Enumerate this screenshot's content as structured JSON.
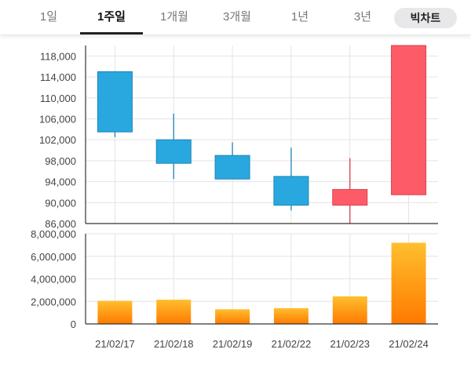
{
  "tabs": [
    {
      "label": "1일",
      "active": false
    },
    {
      "label": "1주일",
      "active": true
    },
    {
      "label": "1개월",
      "active": false
    },
    {
      "label": "3개월",
      "active": false
    },
    {
      "label": "1년",
      "active": false
    },
    {
      "label": "3년",
      "active": false
    }
  ],
  "chart_toggle_label": "빅차트",
  "colors": {
    "down": "#29a8e0",
    "down_stroke": "#1d84b5",
    "up": "#fe5b68",
    "up_stroke": "#d9404c",
    "volume_top": "#ffbf2e",
    "volume_bottom": "#ff7a00"
  },
  "chart_data": [
    {
      "type": "candlestick",
      "categories": [
        "21/02/17",
        "21/02/18",
        "21/02/19",
        "21/02/22",
        "21/02/23",
        "21/02/24"
      ],
      "series": [
        {
          "open": 115000,
          "high": 115000,
          "low": 102500,
          "close": 103500,
          "direction": "down"
        },
        {
          "open": 102000,
          "high": 107000,
          "low": 94500,
          "close": 97500,
          "direction": "down"
        },
        {
          "open": 99000,
          "high": 101500,
          "low": 94500,
          "close": 94500,
          "direction": "down"
        },
        {
          "open": 95000,
          "high": 100500,
          "low": 88500,
          "close": 89500,
          "direction": "down"
        },
        {
          "open": 89500,
          "high": 98500,
          "low": 86000,
          "close": 92500,
          "direction": "up"
        },
        {
          "open": 91500,
          "high": 120000,
          "low": 91500,
          "close": 120000,
          "direction": "up"
        }
      ],
      "yticks": [
        "118,000",
        "114,000",
        "110,000",
        "106,000",
        "102,000",
        "98,000",
        "94,000",
        "90,000",
        "86,000"
      ],
      "ylim": [
        86000,
        120000
      ],
      "grid": true
    },
    {
      "type": "bar",
      "categories": [
        "21/02/17",
        "21/02/18",
        "21/02/19",
        "21/02/22",
        "21/02/23",
        "21/02/24"
      ],
      "values": [
        2050000,
        2150000,
        1300000,
        1400000,
        2450000,
        7200000
      ],
      "yticks": [
        "8,000,000",
        "6,000,000",
        "4,000,000",
        "2,000,000",
        "0"
      ],
      "ylim": [
        0,
        8000000
      ],
      "grid": true
    }
  ]
}
